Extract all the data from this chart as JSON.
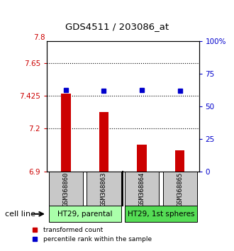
{
  "title": "GDS4511 / 203086_at",
  "samples": [
    "GSM368860",
    "GSM368863",
    "GSM368864",
    "GSM368865"
  ],
  "bar_values": [
    7.44,
    7.315,
    7.09,
    7.05
  ],
  "percentile_values": [
    63,
    62,
    63,
    62
  ],
  "ylim_left": [
    6.9,
    7.8
  ],
  "ylim_right": [
    0,
    100
  ],
  "yticks_left": [
    6.9,
    7.2,
    7.425,
    7.65
  ],
  "ytick_labels_left": [
    "6.9",
    "7.2",
    "7.425",
    "7.65"
  ],
  "ytop_label": "7.8",
  "ytop_value": 7.8,
  "yticks_right": [
    0,
    25,
    50,
    75,
    100
  ],
  "ytick_labels_right": [
    "0",
    "25",
    "50",
    "75",
    "100%"
  ],
  "bar_color": "#cc0000",
  "dot_color": "#0000cc",
  "bar_bottom": 6.9,
  "bar_width": 0.25,
  "groups": [
    {
      "label": "HT29, parental",
      "samples": [
        0,
        1
      ],
      "color": "#aaffaa"
    },
    {
      "label": "HT29, 1st spheres",
      "samples": [
        2,
        3
      ],
      "color": "#55dd55"
    }
  ],
  "cell_line_label": "cell line",
  "legend_bar_label": "transformed count",
  "legend_dot_label": "percentile rank within the sample",
  "dotted_lines": [
    7.65,
    7.425,
    7.2
  ],
  "background_color": "#ffffff",
  "sample_box_color": "#c8c8c8"
}
